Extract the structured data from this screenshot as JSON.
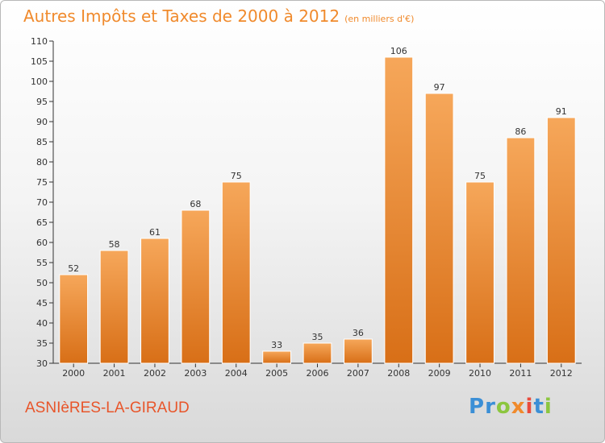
{
  "title": "Autres Impôts et Taxes de 2000 à 2012",
  "title_unit": "(en milliers d'€)",
  "town": "ASNIèRES-LA-GIRAUD",
  "logo": {
    "letters": [
      "P",
      "r",
      "o",
      "x",
      "i",
      "t",
      "i"
    ],
    "colors": [
      "#3b8fd6",
      "#3b8fd6",
      "#8cc63f",
      "#f08a2c",
      "#e94b3c",
      "#3b8fd6",
      "#8cc63f"
    ]
  },
  "colors": {
    "title": "#f08a2c",
    "town": "#e8552a",
    "bar_light": "#f6a75a",
    "bar_dark": "#d86f17",
    "bar_label": "#333333",
    "axis": "#333333"
  },
  "chart_data": {
    "type": "bar",
    "title": "Autres Impôts et Taxes de 2000 à 2012",
    "xlabel": "",
    "ylabel": "",
    "categories": [
      "2000",
      "2001",
      "2002",
      "2003",
      "2004",
      "2005",
      "2006",
      "2007",
      "2008",
      "2009",
      "2010",
      "2011",
      "2012"
    ],
    "values": [
      52,
      58,
      61,
      68,
      75,
      33,
      35,
      36,
      106,
      97,
      75,
      86,
      91
    ],
    "ylim": [
      30,
      110
    ],
    "yticks": [
      30,
      35,
      40,
      45,
      50,
      55,
      60,
      65,
      70,
      75,
      80,
      85,
      90,
      95,
      100,
      105,
      110
    ],
    "grid": false,
    "legend": "none"
  }
}
